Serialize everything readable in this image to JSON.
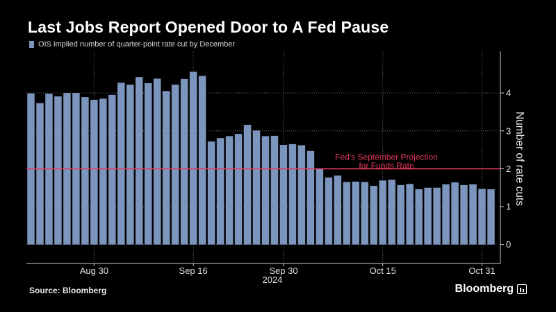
{
  "title": "Last Jobs Report Opened Door to A Fed Pause",
  "source": "Source: Bloomberg",
  "brand": "Bloomberg",
  "colors": {
    "bar": "#7b95bd",
    "reference_line": "#e8385f",
    "grid": "#6a6a6a",
    "background": "#000000"
  },
  "chart_data": {
    "type": "bar",
    "title": "Last Jobs Report Opened Door to A Fed Pause",
    "legend": "OIS implied number of quarter-point rate cut by December",
    "xlabel": "2024",
    "ylabel": "Number of rate cuts",
    "ylim": [
      -0.5,
      5.1
    ],
    "y_ticks": [
      0,
      1,
      2,
      3,
      4
    ],
    "grid": true,
    "x_tick_labels": [
      {
        "label": "Aug 30",
        "index": 7
      },
      {
        "label": "Sep 16",
        "index": 18
      },
      {
        "label": "Sep 30",
        "index": 28
      },
      {
        "label": "Oct 15",
        "index": 39
      },
      {
        "label": "Oct 31",
        "index": 50
      }
    ],
    "year_label": "2024",
    "values": [
      3.99,
      3.73,
      3.98,
      3.91,
      4.0,
      4.0,
      3.89,
      3.82,
      3.85,
      3.95,
      4.27,
      4.22,
      4.42,
      4.26,
      4.38,
      4.05,
      4.22,
      4.37,
      4.56,
      4.45,
      2.72,
      2.81,
      2.86,
      2.92,
      3.16,
      3.01,
      2.86,
      2.87,
      2.63,
      2.65,
      2.62,
      2.47,
      2.0,
      1.77,
      1.82,
      1.65,
      1.66,
      1.65,
      1.55,
      1.69,
      1.71,
      1.57,
      1.6,
      1.46,
      1.5,
      1.5,
      1.59,
      1.64,
      1.57,
      1.59,
      1.47,
      1.46
    ],
    "reference_line": {
      "value": 2,
      "label_line1": "Fed's September Projection",
      "label_line2": "for Funds Rate"
    }
  }
}
